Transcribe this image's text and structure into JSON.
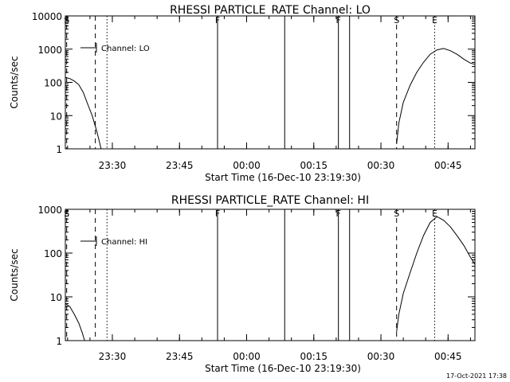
{
  "footer_timestamp": "17-Oct-2021 17:38",
  "colors": {
    "background": "#ffffff",
    "foreground": "#000000"
  },
  "chart_data": [
    {
      "type": "line",
      "title": "RHESSI PARTICLE_RATE Channel: LO",
      "xlabel": "Start Time (16-Dec-10 23:19:30)",
      "ylabel": "Counts/sec",
      "yscale": "log",
      "xlim": [
        0,
        90
      ],
      "ylim": [
        1,
        10000
      ],
      "xticks": [
        {
          "x": 10.5,
          "label": "23:30"
        },
        {
          "x": 25.5,
          "label": "23:45"
        },
        {
          "x": 40.5,
          "label": "00:00"
        },
        {
          "x": 55.5,
          "label": "00:15"
        },
        {
          "x": 70.5,
          "label": "00:30"
        },
        {
          "x": 85.5,
          "label": "00:45"
        }
      ],
      "yticks": [
        {
          "y": 1,
          "label": "1"
        },
        {
          "y": 10,
          "label": "10"
        },
        {
          "y": 100,
          "label": "100"
        },
        {
          "y": 1000,
          "label": "1000"
        },
        {
          "y": 10000,
          "label": "10000"
        }
      ],
      "legend": {
        "placement": "top-left",
        "entries": [
          "Channel: LO"
        ]
      },
      "grid": false,
      "markers": [
        {
          "x": 0.3,
          "label": "S",
          "style": "dashed"
        },
        {
          "x": 6.7,
          "label": "",
          "style": "dashed"
        },
        {
          "x": 9.3,
          "label": "",
          "style": "dotted"
        },
        {
          "x": 34.0,
          "label": "F",
          "style": "solid"
        },
        {
          "x": 49.0,
          "label": "",
          "style": "solid"
        },
        {
          "x": 61.0,
          "label": "F",
          "style": "solid"
        },
        {
          "x": 63.5,
          "label": "",
          "style": "solid"
        },
        {
          "x": 74.0,
          "label": "S",
          "style": "dashed"
        },
        {
          "x": 82.5,
          "label": "E",
          "style": "dotted"
        },
        {
          "x": 91.5,
          "label": "",
          "style": "dashdot"
        }
      ],
      "series": [
        {
          "name": "Channel: LO",
          "segments": [
            [
              [
                0.0,
                140
              ],
              [
                1.0,
                130
              ],
              [
                2.0,
                110
              ],
              [
                3.0,
                85
              ],
              [
                4.0,
                50
              ],
              [
                5.0,
                22
              ],
              [
                6.0,
                10
              ],
              [
                7.0,
                3.5
              ],
              [
                8.0,
                1.0
              ]
            ],
            [
              [
                74.0,
                1.4
              ],
              [
                74.5,
                6
              ],
              [
                75.5,
                25
              ],
              [
                77.0,
                80
              ],
              [
                78.5,
                200
              ],
              [
                80.0,
                400
              ],
              [
                81.5,
                700
              ],
              [
                83.0,
                950
              ],
              [
                84.5,
                1050
              ],
              [
                86.0,
                900
              ],
              [
                87.5,
                700
              ],
              [
                89.0,
                500
              ],
              [
                90.5,
                380
              ],
              [
                91.5,
                350
              ]
            ]
          ]
        }
      ]
    },
    {
      "type": "line",
      "title": "RHESSI PARTICLE_RATE Channel: HI",
      "xlabel": "Start Time (16-Dec-10 23:19:30)",
      "ylabel": "Counts/sec",
      "yscale": "log",
      "xlim": [
        0,
        90
      ],
      "ylim": [
        1,
        1000
      ],
      "xticks": [
        {
          "x": 10.5,
          "label": "23:30"
        },
        {
          "x": 25.5,
          "label": "23:45"
        },
        {
          "x": 40.5,
          "label": "00:00"
        },
        {
          "x": 55.5,
          "label": "00:15"
        },
        {
          "x": 70.5,
          "label": "00:30"
        },
        {
          "x": 85.5,
          "label": "00:45"
        }
      ],
      "yticks": [
        {
          "y": 1,
          "label": "1"
        },
        {
          "y": 10,
          "label": "10"
        },
        {
          "y": 100,
          "label": "100"
        },
        {
          "y": 1000,
          "label": "1000"
        }
      ],
      "legend": {
        "placement": "top-left",
        "entries": [
          "Channel: HI"
        ]
      },
      "grid": false,
      "markers": [
        {
          "x": 0.3,
          "label": "S",
          "style": "dashed"
        },
        {
          "x": 6.7,
          "label": "",
          "style": "dashed"
        },
        {
          "x": 9.3,
          "label": "",
          "style": "dotted"
        },
        {
          "x": 34.0,
          "label": "F",
          "style": "solid"
        },
        {
          "x": 49.0,
          "label": "",
          "style": "solid"
        },
        {
          "x": 61.0,
          "label": "F",
          "style": "solid"
        },
        {
          "x": 63.5,
          "label": "",
          "style": "solid"
        },
        {
          "x": 74.0,
          "label": "S",
          "style": "dashed"
        },
        {
          "x": 82.5,
          "label": "E",
          "style": "dotted"
        },
        {
          "x": 91.5,
          "label": "",
          "style": "dashdot"
        }
      ],
      "series": [
        {
          "name": "Channel: HI",
          "segments": [
            [
              [
                0.0,
                7
              ],
              [
                1.0,
                6
              ],
              [
                2.0,
                4
              ],
              [
                3.0,
                2.5
              ],
              [
                3.8,
                1.5
              ],
              [
                4.3,
                1.0
              ]
            ],
            [
              [
                74.0,
                1.6
              ],
              [
                74.5,
                4
              ],
              [
                75.5,
                12
              ],
              [
                77.0,
                35
              ],
              [
                78.5,
                100
              ],
              [
                80.0,
                250
              ],
              [
                81.5,
                500
              ],
              [
                83.0,
                680
              ],
              [
                84.5,
                560
              ],
              [
                86.0,
                400
              ],
              [
                87.5,
                250
              ],
              [
                89.0,
                150
              ],
              [
                90.5,
                80
              ],
              [
                91.5,
                55
              ]
            ]
          ]
        }
      ]
    }
  ]
}
